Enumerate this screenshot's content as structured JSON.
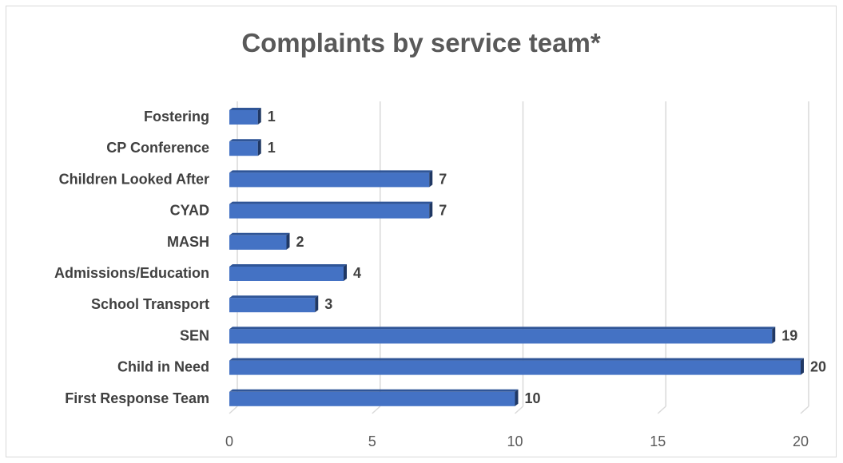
{
  "chart_data": {
    "type": "bar",
    "orientation": "horizontal",
    "title": "Complaints by service team*",
    "categories": [
      "First Response Team",
      "Child in Need",
      "SEN",
      "School Transport",
      "Admissions/Education",
      "MASH",
      "CYAD",
      "Children Looked After",
      "CP Conference",
      "Fostering"
    ],
    "values": [
      10,
      20,
      19,
      3,
      4,
      2,
      7,
      7,
      1,
      1
    ],
    "xlim": [
      0,
      20
    ],
    "xticks": [
      0,
      5,
      10,
      15,
      20
    ],
    "xlabel": "",
    "ylabel": "",
    "grid": true,
    "legend": "none",
    "bar_color": "#4472c4",
    "bar_top_color": "#2f5597",
    "bar_side_color": "#203864"
  }
}
